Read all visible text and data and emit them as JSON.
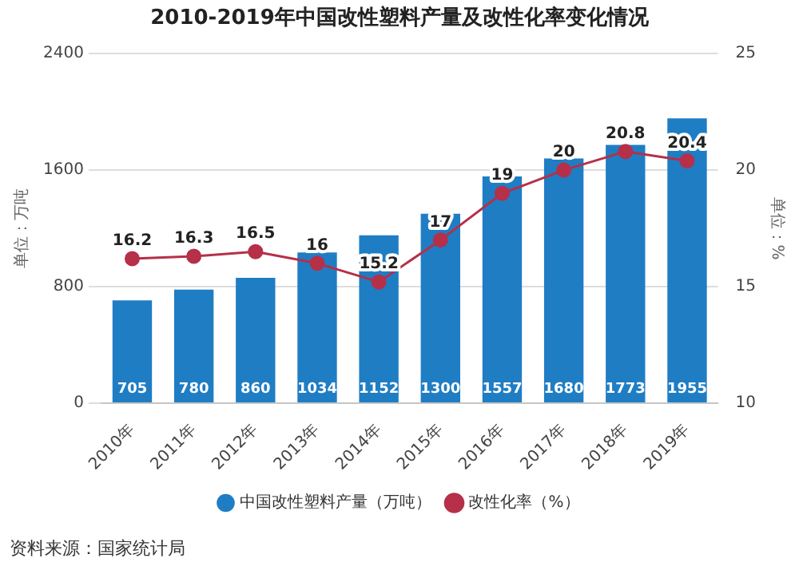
{
  "chart_data": {
    "type": "bar",
    "title": "2010-2019年中国改性塑料产量及改性化率变化情况",
    "ylabel": "单位：万吨",
    "y2label": "单位：%",
    "categories": [
      "2010年",
      "2011年",
      "2012年",
      "2013年",
      "2014年",
      "2015年",
      "2016年",
      "2017年",
      "2018年",
      "2019年"
    ],
    "series": [
      {
        "name": "中国改性塑料产量（万吨）",
        "color": "#1f7dc4",
        "values": [
          705,
          780,
          860,
          1034,
          1152,
          1300,
          1557,
          1680,
          1773,
          1955
        ]
      },
      {
        "name": "改性化率（%）",
        "type": "line",
        "axis": "y2",
        "color": "#b53048",
        "values": [
          16.2,
          16.3,
          16.5,
          16,
          15.2,
          17,
          19,
          20,
          20.8,
          20.4
        ]
      }
    ],
    "ylim": [
      0,
      2400
    ],
    "yticks": [
      0,
      800,
      1600,
      2400
    ],
    "y2lim": [
      10,
      25
    ],
    "y2ticks": [
      10,
      15,
      20,
      25
    ],
    "grid": "y",
    "legend": "bottom",
    "marker": "circle",
    "data_labels": true,
    "annotations": [
      "资料来源：国家统计局"
    ]
  }
}
